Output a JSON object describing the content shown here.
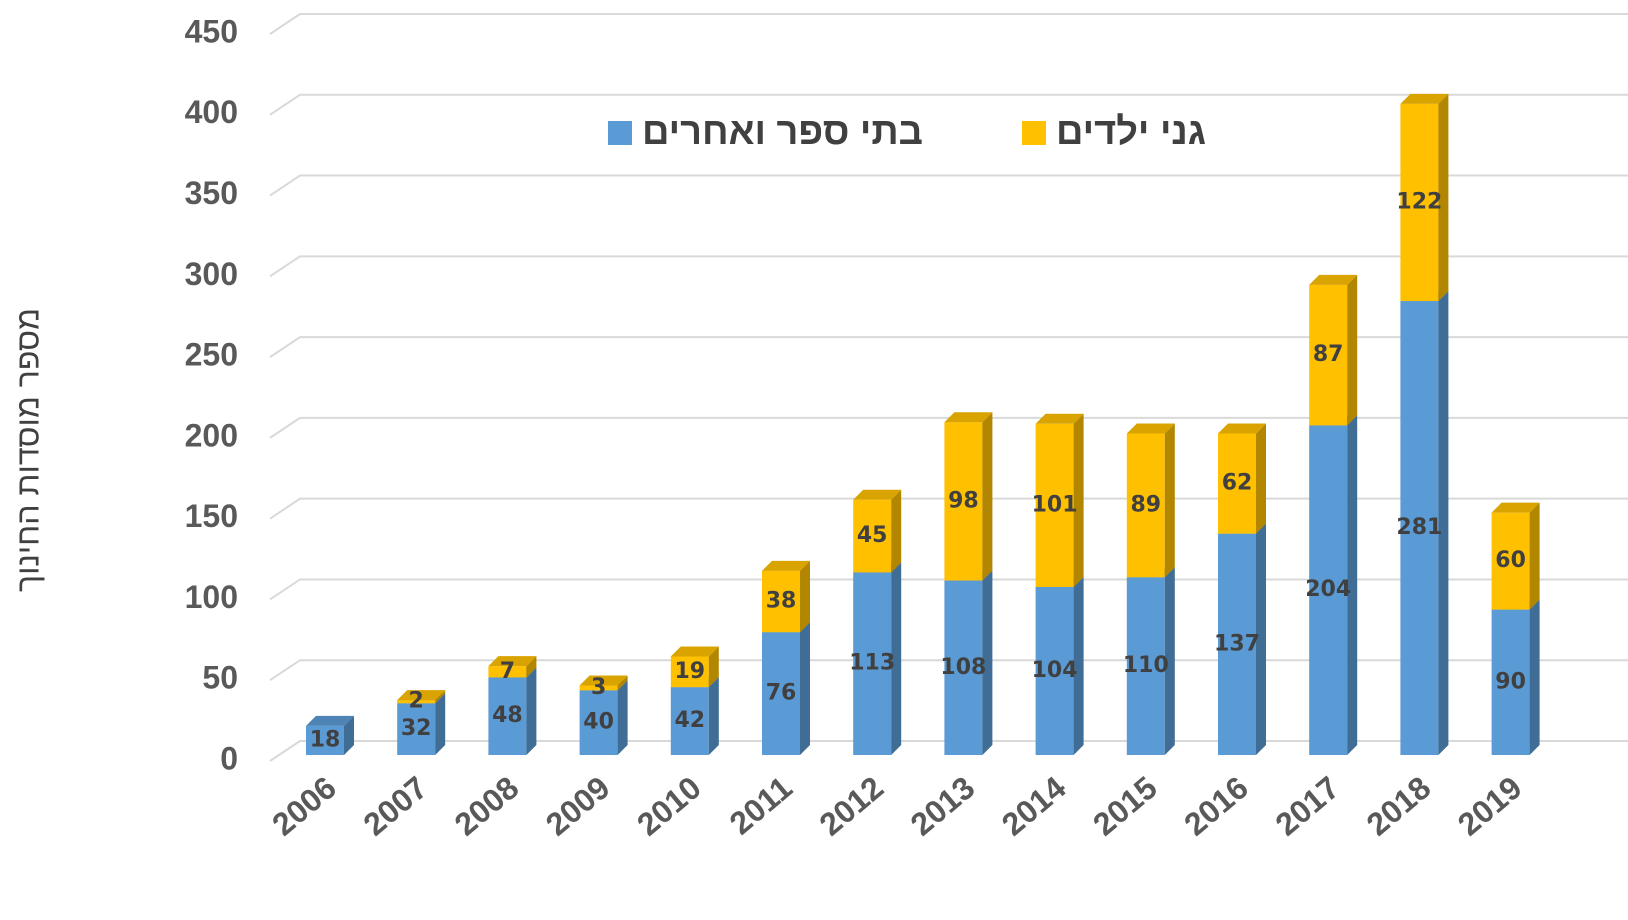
{
  "chart_data": {
    "type": "bar",
    "stacked": true,
    "ylabel": "מספר מוסדות החינוך",
    "categories": [
      "2006",
      "2007",
      "2008",
      "2009",
      "2010",
      "2011",
      "2012",
      "2013",
      "2014",
      "2015",
      "2016",
      "2017",
      "2018",
      "2019"
    ],
    "series": [
      {
        "name": "בתי ספר ואחרים",
        "color": "#5b9bd5",
        "values": [
          18,
          32,
          48,
          40,
          42,
          76,
          113,
          108,
          104,
          110,
          137,
          204,
          281,
          90
        ]
      },
      {
        "name": "גני ילדים",
        "color": "#ffc000",
        "values": [
          null,
          2,
          7,
          3,
          19,
          38,
          45,
          98,
          101,
          89,
          62,
          87,
          122,
          60
        ]
      }
    ],
    "ylim": [
      0,
      450
    ],
    "yticks": [
      0,
      50,
      100,
      150,
      200,
      250,
      300,
      350,
      400,
      450
    ],
    "grid": true,
    "legend": "top"
  }
}
